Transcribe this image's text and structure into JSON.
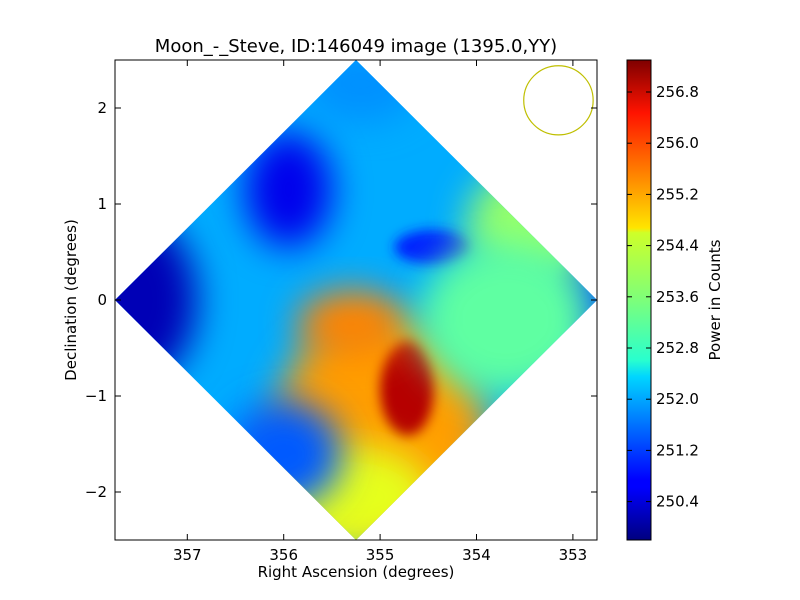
{
  "chart_data": {
    "type": "heatmap",
    "title": "Moon_-_Steve, ID:146049 image (1395.0,YY)",
    "xlabel": "Right Ascension (degrees)",
    "ylabel": "Declination (degrees)",
    "xlim": [
      357.75,
      352.75
    ],
    "ylim": [
      -2.5,
      2.5
    ],
    "x_ticks": [
      357,
      356,
      355,
      354,
      353
    ],
    "x_tick_labels": [
      "357",
      "356",
      "355",
      "354",
      "353"
    ],
    "y_ticks": [
      2,
      1,
      0,
      -1,
      -2
    ],
    "y_tick_labels": [
      "2",
      "1",
      "0",
      "−1",
      "−2"
    ],
    "colorbar": {
      "label": "Power in Counts",
      "range": [
        249.8,
        257.3
      ],
      "ticks": [
        256.8,
        256.0,
        255.2,
        254.4,
        253.6,
        252.8,
        252.0,
        251.2,
        250.4
      ],
      "tick_labels": [
        "256.8",
        "256.0",
        "255.2",
        "254.4",
        "253.6",
        "252.8",
        "252.0",
        "251.2",
        "250.4"
      ],
      "colormap": "jet"
    },
    "image": {
      "shape": "diamond",
      "center_ra": 355.25,
      "center_dec": 0.0,
      "half_extent_deg": 2.5
    },
    "beam_marker": {
      "center_ra": 353.15,
      "center_dec": 2.08,
      "radius_deg": 0.36,
      "color": "#bfbf00"
    },
    "grid": false,
    "legend": "none",
    "blobs": [
      {
        "ra": 355.0,
        "dec": -1.35,
        "rx": 1.1,
        "ry": 1.15,
        "value": 255.2
      },
      {
        "ra": 354.72,
        "dec": -0.92,
        "rx": 0.28,
        "ry": 0.5,
        "value": 256.9
      },
      {
        "ra": 355.3,
        "dec": -0.25,
        "rx": 0.55,
        "ry": 0.35,
        "value": 255.4
      },
      {
        "ra": 355.35,
        "dec": -2.05,
        "rx": 0.9,
        "ry": 0.55,
        "value": 254.3
      },
      {
        "ra": 355.95,
        "dec": 1.15,
        "rx": 0.45,
        "ry": 0.6,
        "value": 250.6
      },
      {
        "ra": 357.6,
        "dec": 0.0,
        "rx": 0.7,
        "ry": 0.9,
        "value": 250.2
      },
      {
        "ra": 356.0,
        "dec": -1.6,
        "rx": 0.6,
        "ry": 0.55,
        "value": 251.4
      },
      {
        "ra": 352.85,
        "dec": 0.05,
        "rx": 0.35,
        "ry": 0.45,
        "value": 251.3
      },
      {
        "ra": 354.45,
        "dec": 0.55,
        "rx": 0.4,
        "ry": 0.18,
        "value": 251.0
      },
      {
        "ra": 353.4,
        "dec": 0.8,
        "rx": 0.7,
        "ry": 0.6,
        "value": 253.7
      },
      {
        "ra": 353.7,
        "dec": -0.2,
        "rx": 0.9,
        "ry": 0.8,
        "value": 253.3
      },
      {
        "ra": 355.2,
        "dec": 2.25,
        "rx": 0.6,
        "ry": 0.4,
        "value": 251.8
      }
    ],
    "background_value": 252.0
  }
}
